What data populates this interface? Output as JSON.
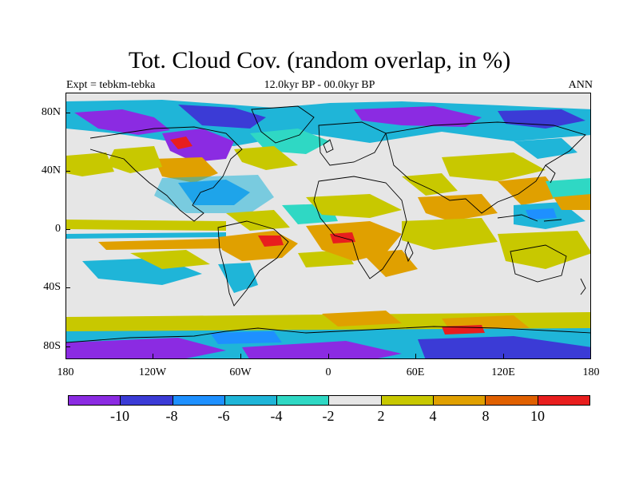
{
  "title": "Tot. Cloud Cov. (random overlap, in %)",
  "subtitle": {
    "left": "Expt = tebkm-tebka",
    "center": "12.0kyr BP - 00.0kyr BP",
    "right": "ANN"
  },
  "axes": {
    "lat_labels": [
      "80N",
      "40N",
      "0",
      "40S",
      "80S"
    ],
    "lon_labels": [
      "180",
      "120W",
      "60W",
      "0",
      "60E",
      "120E",
      "180"
    ]
  },
  "colorbar": {
    "colors": [
      "#8b2be2",
      "#3b3bd6",
      "#1e90ff",
      "#1fb5d8",
      "#2fd8c4",
      "#e6e6e6",
      "#c8c800",
      "#e0a000",
      "#e06000",
      "#e81e1e"
    ],
    "labels": [
      "-10",
      "-8",
      "-6",
      "-4",
      "-2",
      "2",
      "4",
      "8",
      "10"
    ]
  },
  "palette": {
    "neutral": "#e6e6e6",
    "purple": "#8b2be2",
    "blue": "#3b3bd6",
    "lightblue": "#1e90ff",
    "cyan": "#1fb5d8",
    "teal": "#2fd8c4",
    "yellow": "#c8c800",
    "orange": "#e0a000",
    "darkorange": "#e06000",
    "red": "#e81e1e"
  }
}
